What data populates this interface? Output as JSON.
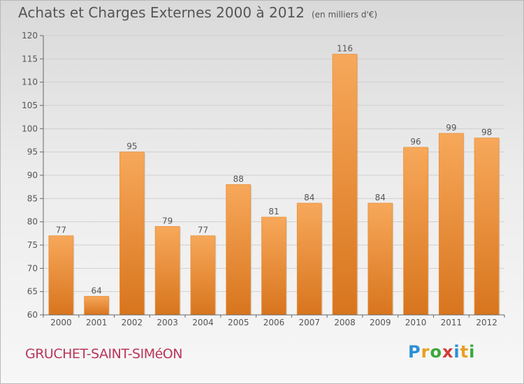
{
  "title": "Achats et Charges Externes 2000 à 2012",
  "subtitle": "(en milliers d'€)",
  "commune": "GRUCHET-SAINT-SIMéON",
  "logo": {
    "letters": [
      "P",
      "r",
      "o",
      "x",
      "i",
      "t",
      "i"
    ],
    "colors": [
      "#2b8fd6",
      "#e8a020",
      "#3aa83a",
      "#d23c3c",
      "#2b8fd6",
      "#e8a020",
      "#3aa83a"
    ]
  },
  "colors": {
    "bar_top": "#f7a85a",
    "bar_bottom": "#d8751e",
    "grid": "#cfcfcf",
    "axis": "#666666",
    "text": "#555555"
  },
  "chart_data": {
    "type": "bar",
    "title": "Achats et Charges Externes 2000 à 2012",
    "xlabel": "",
    "ylabel": "",
    "ylim": [
      60,
      120
    ],
    "yticks": [
      60,
      65,
      70,
      75,
      80,
      85,
      90,
      95,
      100,
      105,
      110,
      115,
      120
    ],
    "categories": [
      "2000",
      "2001",
      "2002",
      "2003",
      "2004",
      "2005",
      "2006",
      "2007",
      "2008",
      "2009",
      "2010",
      "2011",
      "2012"
    ],
    "values": [
      77,
      64,
      95,
      79,
      77,
      88,
      81,
      84,
      116,
      84,
      96,
      99,
      98
    ]
  }
}
